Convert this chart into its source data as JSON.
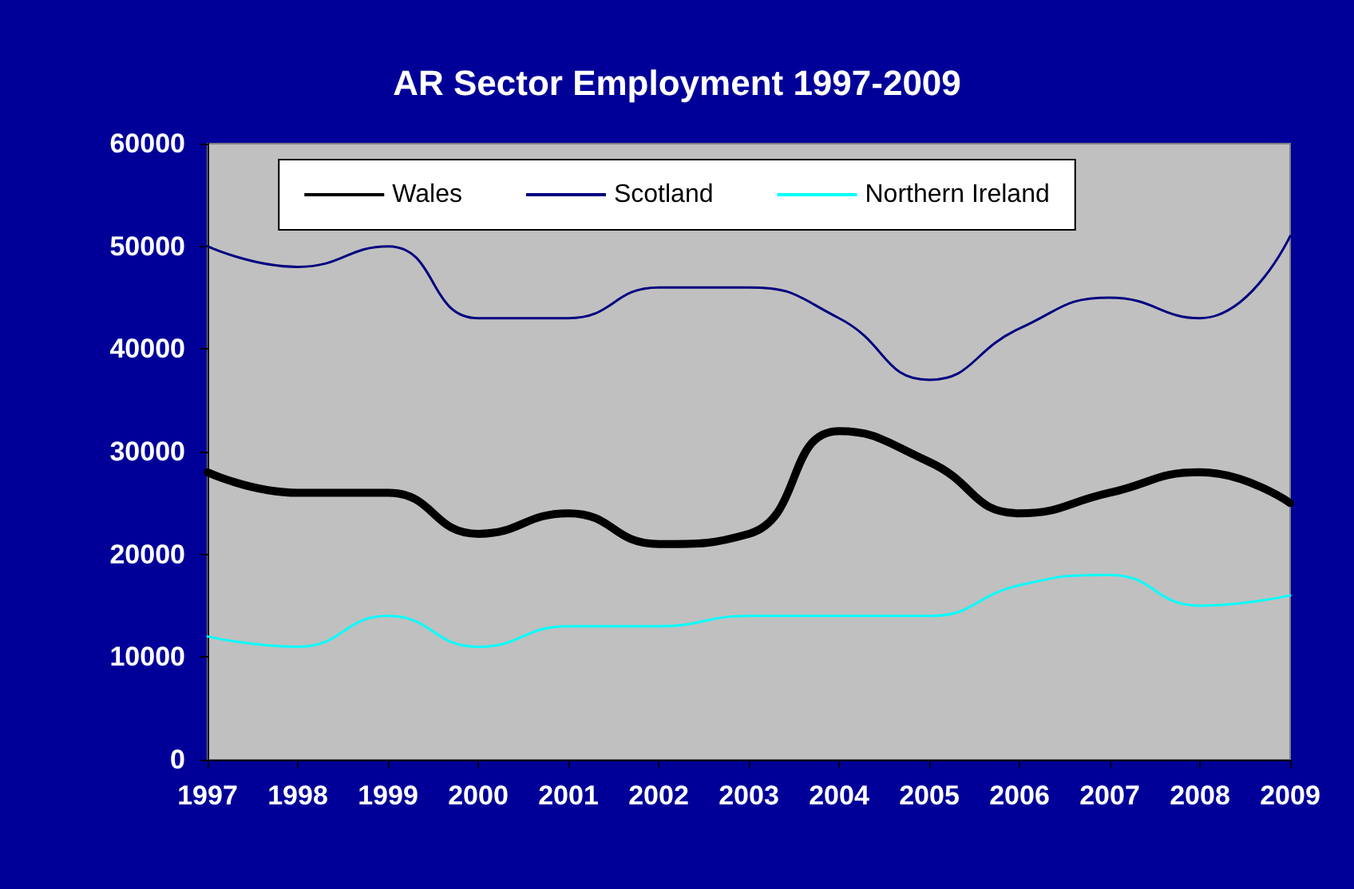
{
  "chart_data": {
    "type": "line",
    "title": "AR Sector Employment 1997-2009",
    "categories": [
      "1997",
      "1998",
      "1999",
      "2000",
      "2001",
      "2002",
      "2003",
      "2004",
      "2005",
      "2006",
      "2007",
      "2008",
      "2009"
    ],
    "series": [
      {
        "name": "Wales",
        "color": "#000000",
        "values": [
          28000,
          26000,
          26000,
          22000,
          24000,
          21000,
          22000,
          32000,
          29000,
          24000,
          26000,
          28000,
          25000
        ]
      },
      {
        "name": "Scotland",
        "color": "#000080",
        "values": [
          50000,
          48000,
          50000,
          43000,
          43000,
          46000,
          46000,
          43000,
          37000,
          42000,
          45000,
          43000,
          51000
        ]
      },
      {
        "name": "Northern Ireland",
        "color": "#00ffff",
        "values": [
          12000,
          11000,
          14000,
          11000,
          13000,
          13000,
          14000,
          14000,
          14000,
          17000,
          18000,
          15000,
          16000
        ]
      }
    ],
    "ylim": [
      0,
      60000
    ],
    "yticks": [
      0,
      10000,
      20000,
      30000,
      40000,
      50000,
      60000
    ],
    "grid": false,
    "legend": "top",
    "marker": "none",
    "line_style": "solid"
  }
}
